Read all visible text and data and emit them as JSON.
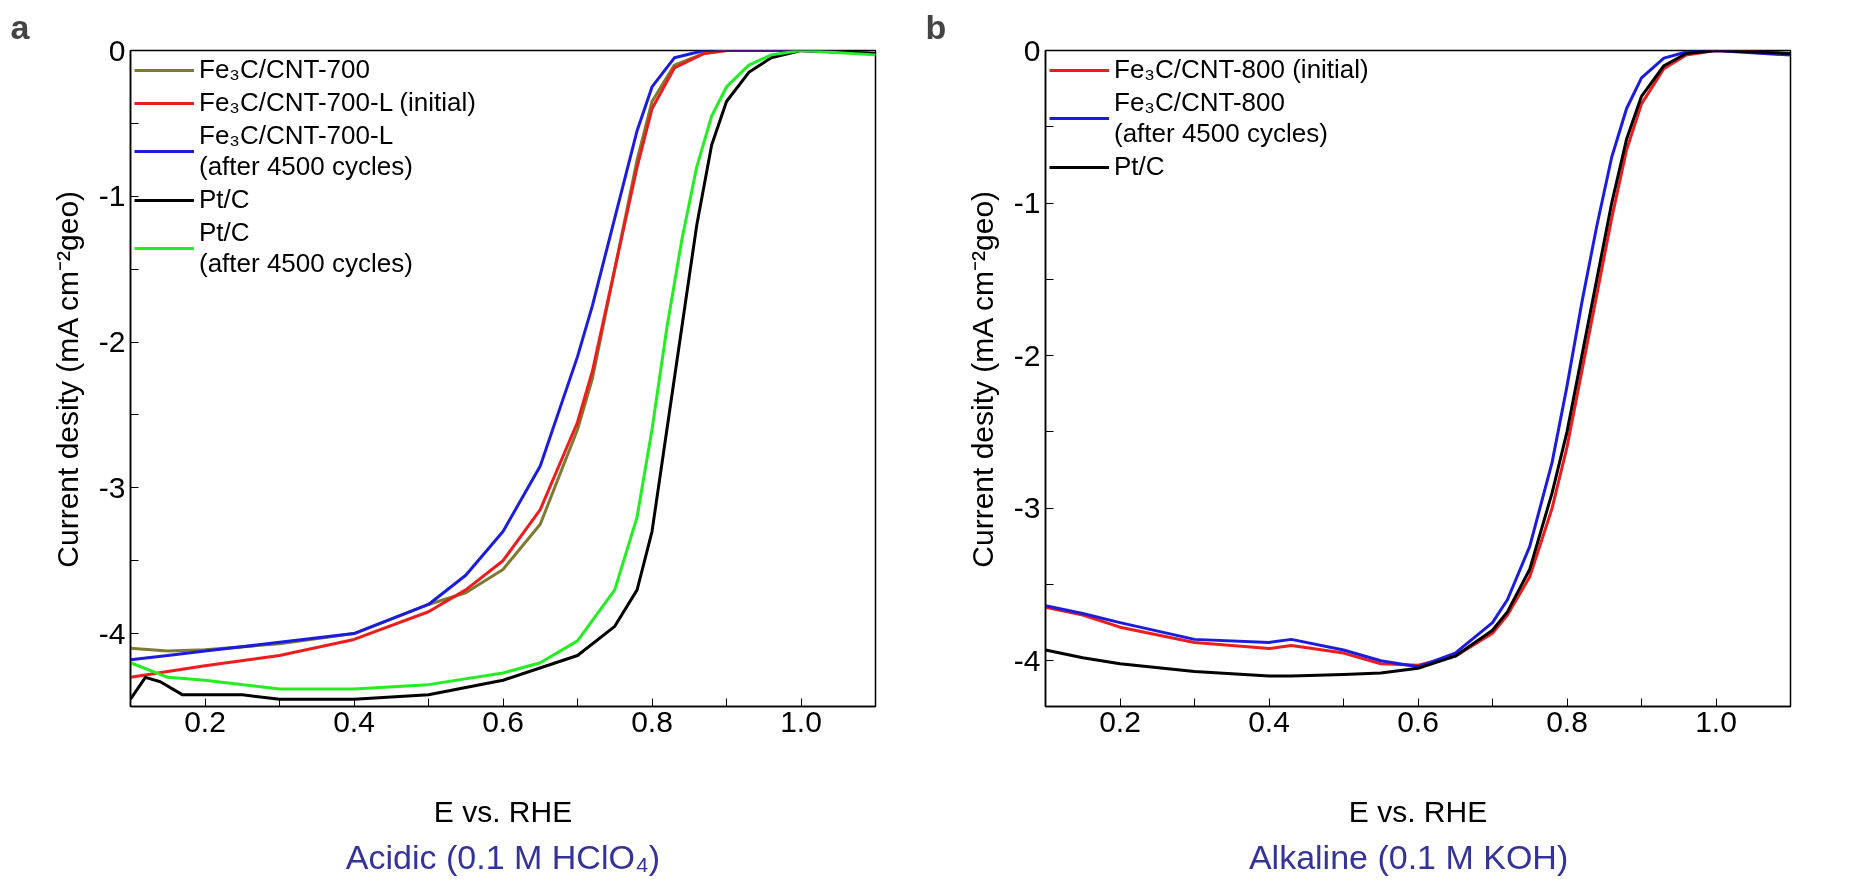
{
  "chart_data": [
    {
      "type": "line",
      "title": "a",
      "xlabel": "E vs. RHE",
      "ylabel": "Current desity (mA cm⁻²geo)",
      "annotations": [
        "Acidic (0.1 M HClO₄)"
      ],
      "x": [
        0.1,
        0.15,
        0.2,
        0.3,
        0.4,
        0.5,
        0.55,
        0.6,
        0.65,
        0.7,
        0.72,
        0.75,
        0.78,
        0.8,
        0.83,
        0.87,
        0.9,
        1.0,
        1.1
      ],
      "xlim": [
        0.1,
        1.1
      ],
      "ylim": [
        -4.5,
        0
      ],
      "xticks": [
        {
          "value": 0.1,
          "label": null
        },
        0.2,
        {
          "value": 0.3,
          "label": null
        },
        0.4,
        {
          "value": 0.5,
          "label": null
        },
        0.6,
        {
          "value": 0.7,
          "label": null
        },
        0.8,
        {
          "value": 0.9,
          "label": null
        },
        {
          "value": 1.0,
          "label": "1.0"
        },
        {
          "value": 1.1,
          "label": null
        }
      ],
      "yticks": [
        {
          "value": -4.5,
          "label": null
        },
        -4,
        {
          "value": -3.5,
          "label": null
        },
        -3,
        {
          "value": -2.5,
          "label": null
        },
        -2,
        {
          "value": -1.5,
          "label": null
        },
        -1,
        {
          "value": -0.5,
          "label": null
        },
        0
      ],
      "legend": "top left",
      "grid": false,
      "line_style": "solid",
      "series": [
        {
          "name": "Fe₃C/CNT-700",
          "color": "#807a30",
          "x": [
            0.1,
            0.15,
            0.2,
            0.3,
            0.4,
            0.5,
            0.55,
            0.6,
            0.65,
            0.7,
            0.72,
            0.75,
            0.78,
            0.8,
            0.83,
            0.87,
            0.9
          ],
          "values": [
            -4.1,
            -4.12,
            -4.11,
            -4.07,
            -4.0,
            -3.8,
            -3.72,
            -3.56,
            -3.25,
            -2.6,
            -2.25,
            -1.5,
            -0.75,
            -0.35,
            -0.1,
            -0.02,
            0
          ]
        },
        {
          "name": "Fe₃C/CNT-700-L (initial)",
          "color": "#ee1c1c",
          "values": [
            -4.3,
            -4.26,
            -4.22,
            -4.15,
            -4.04,
            -3.85,
            -3.7,
            -3.5,
            -3.15,
            -2.55,
            -2.2,
            -1.5,
            -0.8,
            -0.4,
            -0.12,
            -0.02,
            0,
            0,
            -0.02
          ]
        },
        {
          "name": "Fe₃C/CNT-700-L\n(after 4500 cycles)",
          "color": "#1c1ce0",
          "values": [
            -4.18,
            -4.15,
            -4.12,
            -4.06,
            -4.0,
            -3.8,
            -3.6,
            -3.3,
            -2.85,
            -2.1,
            -1.75,
            -1.15,
            -0.55,
            -0.25,
            -0.05,
            0,
            0,
            0,
            -0.02
          ]
        },
        {
          "name": "Pt/C",
          "color": "#000000",
          "x": [
            0.1,
            0.12,
            0.14,
            0.17,
            0.25,
            0.3,
            0.4,
            0.5,
            0.6,
            0.7,
            0.75,
            0.78,
            0.8,
            0.82,
            0.84,
            0.86,
            0.88,
            0.9,
            0.93,
            0.96,
            1.0,
            1.1
          ],
          "values": [
            -4.45,
            -4.3,
            -4.33,
            -4.42,
            -4.42,
            -4.45,
            -4.45,
            -4.42,
            -4.32,
            -4.15,
            -3.95,
            -3.7,
            -3.3,
            -2.6,
            -1.9,
            -1.2,
            -0.65,
            -0.35,
            -0.15,
            -0.05,
            0,
            -0.02
          ]
        },
        {
          "name": "Pt/C\n(after 4500 cycles)",
          "color": "#22ee22",
          "x": [
            0.1,
            0.15,
            0.2,
            0.3,
            0.4,
            0.5,
            0.6,
            0.65,
            0.7,
            0.75,
            0.78,
            0.8,
            0.82,
            0.84,
            0.86,
            0.88,
            0.9,
            0.93,
            0.96,
            1.0,
            1.1
          ],
          "values": [
            -4.2,
            -4.3,
            -4.32,
            -4.38,
            -4.38,
            -4.35,
            -4.27,
            -4.2,
            -4.05,
            -3.7,
            -3.2,
            -2.6,
            -1.9,
            -1.3,
            -0.8,
            -0.45,
            -0.25,
            -0.1,
            -0.03,
            0,
            -0.03
          ]
        }
      ]
    },
    {
      "type": "line",
      "title": "b",
      "xlabel": "E vs. RHE",
      "ylabel": "Current desity (mA cm⁻²geo)",
      "annotations": [
        "Alkaline   (0.1 M KOH)"
      ],
      "x": [
        0.1,
        0.15,
        0.2,
        0.3,
        0.4,
        0.43,
        0.5,
        0.55,
        0.6,
        0.65,
        0.7,
        0.72,
        0.75,
        0.78,
        0.8,
        0.82,
        0.84,
        0.86,
        0.88,
        0.9,
        0.93,
        0.96,
        1.0,
        1.1
      ],
      "xlim": [
        0.1,
        1.1
      ],
      "ylim": [
        -4.3,
        0
      ],
      "xticks": [
        {
          "value": 0.1,
          "label": null
        },
        0.2,
        {
          "value": 0.3,
          "label": null
        },
        0.4,
        {
          "value": 0.5,
          "label": null
        },
        0.6,
        {
          "value": 0.7,
          "label": null
        },
        0.8,
        {
          "value": 0.9,
          "label": null
        },
        {
          "value": 1.0,
          "label": "1.0"
        },
        {
          "value": 1.1,
          "label": null
        }
      ],
      "yticks": [
        -4,
        {
          "value": -3.5,
          "label": null
        },
        -3,
        {
          "value": -2.5,
          "label": null
        },
        -2,
        {
          "value": -1.5,
          "label": null
        },
        -1,
        {
          "value": -0.5,
          "label": null
        },
        0
      ],
      "legend": "top left",
      "grid": false,
      "line_style": "solid",
      "series": [
        {
          "name": "Fe₃C/CNT-800 (initial)",
          "color": "#ee1c1c",
          "values": [
            -3.65,
            -3.7,
            -3.78,
            -3.88,
            -3.92,
            -3.9,
            -3.95,
            -4.02,
            -4.03,
            -3.97,
            -3.82,
            -3.7,
            -3.45,
            -3.0,
            -2.6,
            -2.1,
            -1.6,
            -1.1,
            -0.65,
            -0.35,
            -0.12,
            -0.03,
            0,
            -0.02
          ]
        },
        {
          "name": "Fe₃C/CNT-800\n(after 4500 cycles)",
          "color": "#1c1ce0",
          "values": [
            -3.64,
            -3.69,
            -3.75,
            -3.86,
            -3.88,
            -3.86,
            -3.93,
            -4.0,
            -4.04,
            -3.95,
            -3.75,
            -3.6,
            -3.25,
            -2.7,
            -2.2,
            -1.65,
            -1.15,
            -0.7,
            -0.38,
            -0.18,
            -0.05,
            -0.01,
            0,
            -0.03
          ]
        },
        {
          "name": "Pt/C",
          "color": "#000000",
          "values": [
            -3.93,
            -3.98,
            -4.02,
            -4.07,
            -4.1,
            -4.1,
            -4.09,
            -4.08,
            -4.05,
            -3.97,
            -3.8,
            -3.68,
            -3.4,
            -2.9,
            -2.5,
            -2.0,
            -1.5,
            -1.0,
            -0.58,
            -0.3,
            -0.1,
            -0.02,
            0,
            -0.02
          ]
        }
      ]
    }
  ]
}
